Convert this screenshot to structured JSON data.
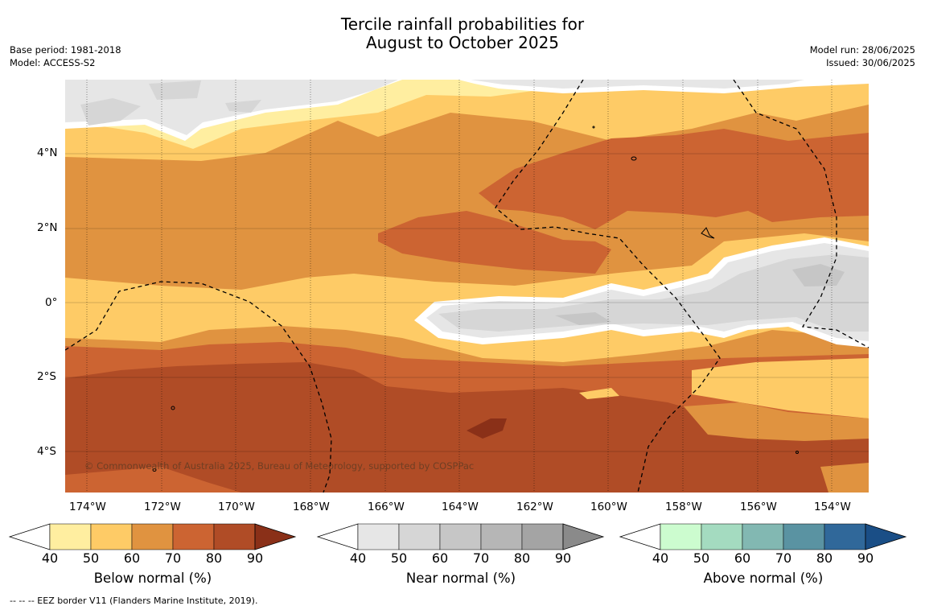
{
  "title_line1": "Tercile rainfall probabilities for",
  "title_line2": "August to October 2025",
  "meta": {
    "base_period": "Base period: 1981-2018",
    "model": "Model: ACCESS-S2",
    "model_run": "Model run: 28/06/2025",
    "issued": "Issued: 30/06/2025"
  },
  "map": {
    "lon_labels": [
      "174°W",
      "172°W",
      "170°W",
      "168°W",
      "166°W",
      "164°W",
      "162°W",
      "160°W",
      "158°W",
      "156°W",
      "154°W"
    ],
    "lat_labels": [
      "4°N",
      "2°N",
      "0°",
      "2°S",
      "4°S"
    ],
    "copyright": "© Commonwealth of Australia 2025, Bureau of Meteorology, supported by COSPPac"
  },
  "colorbars": [
    {
      "name": "Below normal (%)",
      "ticks": [
        "40",
        "50",
        "60",
        "70",
        "80",
        "90"
      ],
      "colors": [
        "#ffeea0",
        "#fecb66",
        "#e09340",
        "#cc6432",
        "#b04c26",
        "#8a3018"
      ]
    },
    {
      "name": "Near normal (%)",
      "ticks": [
        "40",
        "50",
        "60",
        "70",
        "80",
        "90"
      ],
      "colors": [
        "#e6e6e6",
        "#d6d6d6",
        "#c6c6c6",
        "#b6b6b6",
        "#a4a4a4",
        "#8a8a8a"
      ]
    },
    {
      "name": "Above normal (%)",
      "ticks": [
        "40",
        "50",
        "60",
        "70",
        "80",
        "90"
      ],
      "colors": [
        "#ccfccf",
        "#a4dbc0",
        "#82b8b2",
        "#5a93a2",
        "#30689a",
        "#1a4e86"
      ]
    }
  ],
  "footer": "--  --  -- EEZ border V11 (Flanders Marine Institute, 2019)."
}
